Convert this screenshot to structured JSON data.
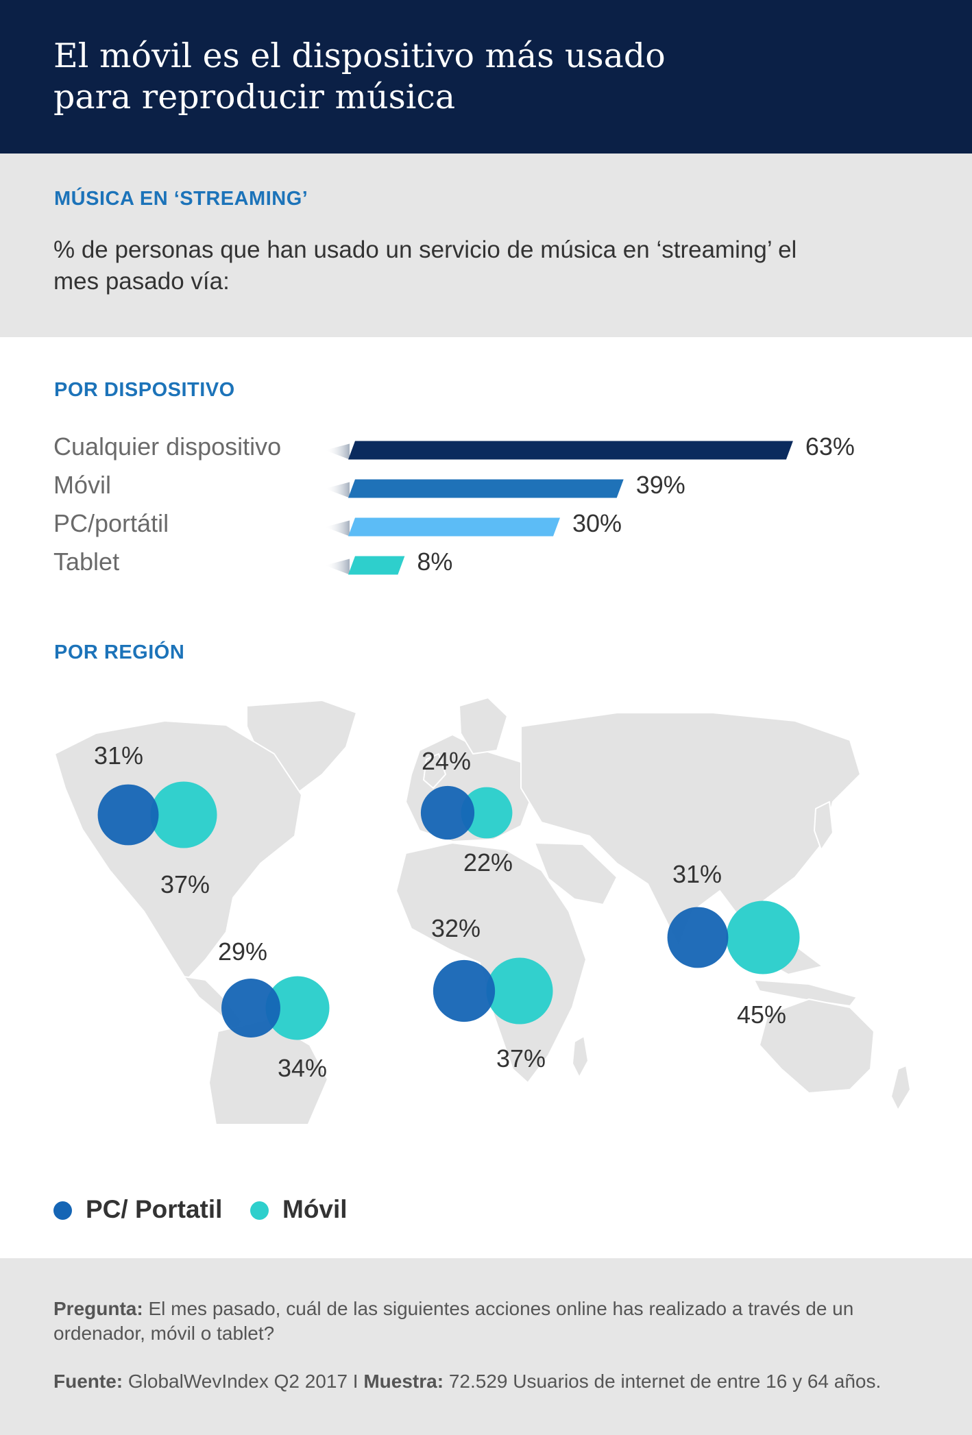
{
  "header": {
    "title": "El móvil es el dispositivo más usado para reproducir música"
  },
  "intro": {
    "kicker": "MÚSICA EN ‘STREAMING’",
    "description": "% de personas que han usado un servicio de música en ‘streaming’ el mes pasado vía:"
  },
  "chart_data": [
    {
      "type": "bar",
      "title": "POR DISPOSITIVO",
      "categories": [
        "Cualquier dispositivo",
        "Móvil",
        "PC/portátil",
        "Tablet"
      ],
      "values": [
        63,
        39,
        30,
        8
      ],
      "value_labels": [
        "63%",
        "39%",
        "30%",
        "8%"
      ],
      "colors": [
        "#0b2b5e",
        "#1f72b8",
        "#5cbcf6",
        "#2ecfcc"
      ],
      "ylim": [
        0,
        100
      ]
    },
    {
      "type": "scatter",
      "title": "POR REGIÓN",
      "series": [
        {
          "name": "PC/ Portatil",
          "color": "#1565b5",
          "values": [
            31,
            24,
            29,
            32,
            31
          ],
          "labels": [
            "31%",
            "24%",
            "29%",
            "32%",
            "31%"
          ]
        },
        {
          "name": "Móvil",
          "color": "#2ecfcc",
          "values": [
            37,
            22,
            34,
            37,
            45
          ],
          "labels": [
            "37%",
            "22%",
            "34%",
            "37%",
            "45%"
          ]
        }
      ]
    }
  ],
  "legend": {
    "pc": {
      "label": "PC/ Portatil",
      "color": "#1565b5"
    },
    "movil": {
      "label": "Móvil",
      "color": "#2ecfcc"
    }
  },
  "footer": {
    "pregunta_label": "Pregunta:",
    "pregunta_text": "El mes pasado, cuál de las siguientes acciones online has realizado a través de un ordenador, móvil o tablet?",
    "fuente_label": "Fuente:",
    "fuente_text": "GlobalWevIndex Q2 2017 I",
    "muestra_label": "Muestra:",
    "muestra_text": "72.529 Usuarios de internet de entre 16 y 64 años."
  }
}
